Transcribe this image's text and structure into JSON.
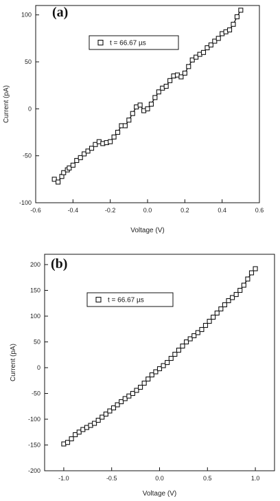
{
  "chart_data": [
    {
      "panel": "(a)",
      "type": "scatter",
      "xlabel": "Voltage (V)",
      "ylabel": "Current (pA)",
      "xlim": [
        -0.6,
        0.6
      ],
      "ylim": [
        -100,
        110
      ],
      "xticks": [
        -0.6,
        -0.4,
        -0.2,
        0.0,
        0.2,
        0.4,
        0.6
      ],
      "xtick_labels": [
        "-0.6",
        "-0.4",
        "-0.2",
        "0.0",
        "0.2",
        "0.4",
        "0.6"
      ],
      "yticks": [
        -100,
        -50,
        0,
        50,
        100
      ],
      "ytick_labels": [
        "-100",
        "-50",
        "0",
        "50",
        "100"
      ],
      "legend": "t = 66.67 µs",
      "legend_position": "top-left",
      "grid": false,
      "marker": "open-square",
      "series": [
        {
          "points": [
            [
              -0.5,
              -75
            ],
            [
              -0.48,
              -78
            ],
            [
              -0.46,
              -72
            ],
            [
              -0.45,
              -68
            ],
            [
              -0.43,
              -65
            ],
            [
              -0.42,
              -63
            ],
            [
              -0.4,
              -60
            ],
            [
              -0.38,
              -55
            ],
            [
              -0.36,
              -52
            ],
            [
              -0.34,
              -48
            ],
            [
              -0.32,
              -45
            ],
            [
              -0.3,
              -42
            ],
            [
              -0.28,
              -38
            ],
            [
              -0.26,
              -35
            ],
            [
              -0.24,
              -37
            ],
            [
              -0.22,
              -36
            ],
            [
              -0.2,
              -35
            ],
            [
              -0.18,
              -30
            ],
            [
              -0.16,
              -25
            ],
            [
              -0.14,
              -18
            ],
            [
              -0.12,
              -18
            ],
            [
              -0.1,
              -12
            ],
            [
              -0.08,
              -5
            ],
            [
              -0.06,
              2
            ],
            [
              -0.04,
              4
            ],
            [
              -0.02,
              -2
            ],
            [
              0.0,
              0
            ],
            [
              0.02,
              5
            ],
            [
              0.04,
              12
            ],
            [
              0.06,
              18
            ],
            [
              0.08,
              22
            ],
            [
              0.1,
              24
            ],
            [
              0.12,
              30
            ],
            [
              0.14,
              35
            ],
            [
              0.16,
              36
            ],
            [
              0.18,
              34
            ],
            [
              0.2,
              38
            ],
            [
              0.22,
              45
            ],
            [
              0.24,
              52
            ],
            [
              0.26,
              55
            ],
            [
              0.28,
              58
            ],
            [
              0.3,
              60
            ],
            [
              0.32,
              65
            ],
            [
              0.34,
              68
            ],
            [
              0.36,
              72
            ],
            [
              0.38,
              75
            ],
            [
              0.4,
              80
            ],
            [
              0.42,
              82
            ],
            [
              0.44,
              84
            ],
            [
              0.46,
              90
            ],
            [
              0.48,
              98
            ],
            [
              0.5,
              105
            ]
          ]
        }
      ]
    },
    {
      "panel": "(b)",
      "type": "scatter",
      "xlabel": "Voltage (V)",
      "ylabel": "Current (pA)",
      "xlim": [
        -1.2,
        1.2
      ],
      "ylim": [
        -200,
        220
      ],
      "xticks": [
        -1.0,
        -0.5,
        0.0,
        0.5,
        1.0
      ],
      "xtick_labels": [
        "-1.0",
        "-0.5",
        "0.0",
        "0.5",
        "1.0"
      ],
      "yticks": [
        -200,
        -150,
        -100,
        -50,
        0,
        50,
        100,
        150,
        200
      ],
      "ytick_labels": [
        "-200",
        "-150",
        "-100",
        "-50",
        "0",
        "50",
        "100",
        "150",
        "200"
      ],
      "legend": "t = 66.67 µs",
      "legend_position": "top-left",
      "grid": false,
      "marker": "open-square",
      "series": [
        {
          "points": [
            [
              -1.0,
              -148
            ],
            [
              -0.96,
              -145
            ],
            [
              -0.92,
              -138
            ],
            [
              -0.88,
              -130
            ],
            [
              -0.84,
              -125
            ],
            [
              -0.8,
              -120
            ],
            [
              -0.76,
              -116
            ],
            [
              -0.72,
              -112
            ],
            [
              -0.68,
              -108
            ],
            [
              -0.64,
              -102
            ],
            [
              -0.6,
              -96
            ],
            [
              -0.56,
              -90
            ],
            [
              -0.52,
              -84
            ],
            [
              -0.48,
              -78
            ],
            [
              -0.44,
              -72
            ],
            [
              -0.4,
              -66
            ],
            [
              -0.36,
              -60
            ],
            [
              -0.32,
              -55
            ],
            [
              -0.28,
              -50
            ],
            [
              -0.24,
              -44
            ],
            [
              -0.2,
              -38
            ],
            [
              -0.16,
              -30
            ],
            [
              -0.12,
              -22
            ],
            [
              -0.08,
              -14
            ],
            [
              -0.04,
              -8
            ],
            [
              0.0,
              -2
            ],
            [
              0.04,
              4
            ],
            [
              0.08,
              10
            ],
            [
              0.12,
              18
            ],
            [
              0.16,
              26
            ],
            [
              0.2,
              34
            ],
            [
              0.24,
              42
            ],
            [
              0.28,
              50
            ],
            [
              0.32,
              56
            ],
            [
              0.36,
              62
            ],
            [
              0.4,
              68
            ],
            [
              0.44,
              74
            ],
            [
              0.48,
              82
            ],
            [
              0.52,
              90
            ],
            [
              0.56,
              98
            ],
            [
              0.6,
              106
            ],
            [
              0.64,
              114
            ],
            [
              0.68,
              122
            ],
            [
              0.72,
              130
            ],
            [
              0.76,
              136
            ],
            [
              0.8,
              142
            ],
            [
              0.84,
              150
            ],
            [
              0.88,
              160
            ],
            [
              0.92,
              172
            ],
            [
              0.96,
              184
            ],
            [
              1.0,
              192
            ]
          ]
        }
      ]
    }
  ]
}
